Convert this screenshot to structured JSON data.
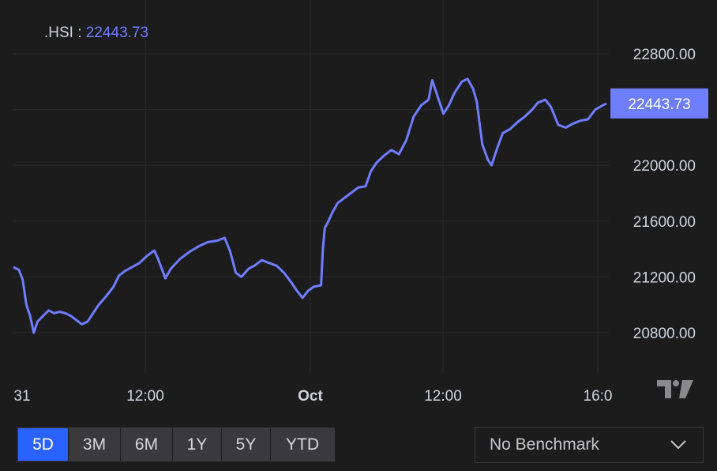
{
  "legend": {
    "symbol": ".HSI :",
    "value": "22443.73"
  },
  "colors": {
    "background": "#1c1c1d",
    "line": "#6f7dff",
    "price_label_bg": "#6f7dff",
    "grid": "#2a2a2c",
    "active_button": "#2962ff"
  },
  "range_buttons": [
    {
      "label": "5D",
      "active": true
    },
    {
      "label": "3M",
      "active": false
    },
    {
      "label": "6M",
      "active": false
    },
    {
      "label": "1Y",
      "active": false
    },
    {
      "label": "5Y",
      "active": false
    },
    {
      "label": "YTD",
      "active": false
    }
  ],
  "benchmark": {
    "label": "No Benchmark",
    "icon": "chevron-down-icon"
  },
  "logo": "tradingview-logo",
  "chart_data": {
    "type": "line",
    "title": "",
    "series": [
      {
        "name": ".HSI",
        "color": "#6f7dff"
      }
    ],
    "y_ticks": [
      "20800.00",
      "21200.00",
      "21600.00",
      "22000.00",
      "22400.00",
      "22800.00"
    ],
    "ylim": [
      20480,
      23000
    ],
    "x_ticks": [
      "31",
      "12:00",
      "Oct",
      "12:00",
      "16:0"
    ],
    "last_value_label": "22443.73",
    "grid": true,
    "points": [
      [
        0,
        21270
      ],
      [
        0.3,
        21250
      ],
      [
        0.5,
        21180
      ],
      [
        0.7,
        21000
      ],
      [
        0.9,
        20920
      ],
      [
        1.1,
        20800
      ],
      [
        1.3,
        20880
      ],
      [
        1.6,
        20920
      ],
      [
        1.9,
        20960
      ],
      [
        2.2,
        20940
      ],
      [
        2.5,
        20950
      ],
      [
        2.8,
        20940
      ],
      [
        3.1,
        20920
      ],
      [
        3.4,
        20890
      ],
      [
        3.7,
        20860
      ],
      [
        4.0,
        20880
      ],
      [
        4.3,
        20940
      ],
      [
        4.6,
        21000
      ],
      [
        5.0,
        21060
      ],
      [
        5.4,
        21130
      ],
      [
        5.7,
        21210
      ],
      [
        6.0,
        21240
      ],
      [
        6.4,
        21270
      ],
      [
        6.8,
        21300
      ],
      [
        7.2,
        21350
      ],
      [
        7.6,
        21390
      ],
      [
        7.8,
        21330
      ],
      [
        8.0,
        21260
      ],
      [
        8.2,
        21190
      ],
      [
        8.5,
        21260
      ],
      [
        9.0,
        21330
      ],
      [
        9.5,
        21380
      ],
      [
        10.0,
        21420
      ],
      [
        10.5,
        21450
      ],
      [
        11.0,
        21460
      ],
      [
        11.4,
        21480
      ],
      [
        11.7,
        21380
      ],
      [
        12.0,
        21230
      ],
      [
        12.3,
        21200
      ],
      [
        12.7,
        21260
      ],
      [
        13.0,
        21280
      ],
      [
        13.4,
        21320
      ],
      [
        13.8,
        21300
      ],
      [
        14.2,
        21280
      ],
      [
        14.6,
        21230
      ],
      [
        15.0,
        21160
      ],
      [
        15.3,
        21100
      ],
      [
        15.6,
        21050
      ],
      [
        15.9,
        21100
      ],
      [
        16.2,
        21130
      ],
      [
        16.6,
        21140
      ],
      [
        16.7,
        21400
      ],
      [
        16.8,
        21550
      ],
      [
        17.0,
        21600
      ],
      [
        17.2,
        21660
      ],
      [
        17.5,
        21730
      ],
      [
        17.8,
        21760
      ],
      [
        18.2,
        21800
      ],
      [
        18.6,
        21840
      ],
      [
        19.0,
        21850
      ],
      [
        19.3,
        21960
      ],
      [
        19.6,
        22020
      ],
      [
        20.0,
        22070
      ],
      [
        20.4,
        22110
      ],
      [
        20.8,
        22080
      ],
      [
        21.2,
        22180
      ],
      [
        21.6,
        22350
      ],
      [
        22.0,
        22430
      ],
      [
        22.4,
        22470
      ],
      [
        22.6,
        22610
      ],
      [
        22.9,
        22490
      ],
      [
        23.2,
        22370
      ],
      [
        23.5,
        22430
      ],
      [
        23.8,
        22520
      ],
      [
        24.2,
        22600
      ],
      [
        24.5,
        22620
      ],
      [
        24.8,
        22550
      ],
      [
        25.0,
        22460
      ],
      [
        25.3,
        22150
      ],
      [
        25.6,
        22040
      ],
      [
        25.8,
        22000
      ],
      [
        26.1,
        22120
      ],
      [
        26.4,
        22230
      ],
      [
        26.8,
        22260
      ],
      [
        27.2,
        22310
      ],
      [
        27.6,
        22350
      ],
      [
        28.0,
        22400
      ],
      [
        28.3,
        22450
      ],
      [
        28.7,
        22470
      ],
      [
        29.0,
        22420
      ],
      [
        29.4,
        22290
      ],
      [
        29.8,
        22270
      ],
      [
        30.2,
        22300
      ],
      [
        30.6,
        22320
      ],
      [
        31.0,
        22330
      ],
      [
        31.4,
        22400
      ],
      [
        31.8,
        22430
      ],
      [
        32.0,
        22443.73
      ]
    ]
  }
}
